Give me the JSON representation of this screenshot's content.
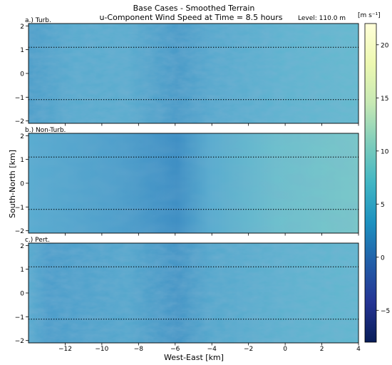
{
  "figure": {
    "title_line1": "Base Cases - Smoothed Terrain",
    "title_line2": "u-Component Wind Speed at Time = 8.5 hours",
    "level": "Level: 110.0 m",
    "xlabel": "West-East [km]",
    "ylabel": "South-North [km]",
    "colorbar_units": "[m s⁻¹]"
  },
  "chart_data": {
    "type": "heatmap",
    "panels": [
      {
        "label": "a.) Turb.",
        "case": "turbulent",
        "mean_u": 9.3
      },
      {
        "label": "b.) Non-Turb.",
        "case": "non-turbulent",
        "mean_u": 9.8
      },
      {
        "label": "c.) Pert.",
        "case": "perturbed",
        "mean_u": 9.1
      }
    ],
    "xlim": [
      -14,
      4
    ],
    "ylim": [
      -2.1,
      2.1
    ],
    "x_ticks": [
      -12,
      -10,
      -8,
      -6,
      -4,
      -2,
      0,
      2,
      4
    ],
    "x_tick_labels": [
      "−12",
      "−10",
      "−8",
      "−6",
      "−4",
      "−2",
      "0",
      "2",
      "4"
    ],
    "y_ticks": [
      -2,
      -1,
      0,
      1,
      2
    ],
    "y_tick_labels": [
      "−2",
      "−1",
      "0",
      "1",
      "2"
    ],
    "dotted_lines_y": [
      1.1,
      -1.1
    ],
    "colorbar": {
      "colormap": "YlGnBu_r",
      "range": [
        -8,
        22
      ],
      "ticks": [
        -5,
        0,
        5,
        10,
        15,
        20
      ],
      "tick_labels": [
        "−5",
        "0",
        "5",
        "10",
        "15",
        "20"
      ],
      "colors": [
        "#081d58",
        "#253494",
        "#225ea8",
        "#1d91c0",
        "#41b6c4",
        "#7fcdbb",
        "#c7e9b4",
        "#edf8b1",
        "#ffffd9"
      ]
    },
    "grid": false
  }
}
